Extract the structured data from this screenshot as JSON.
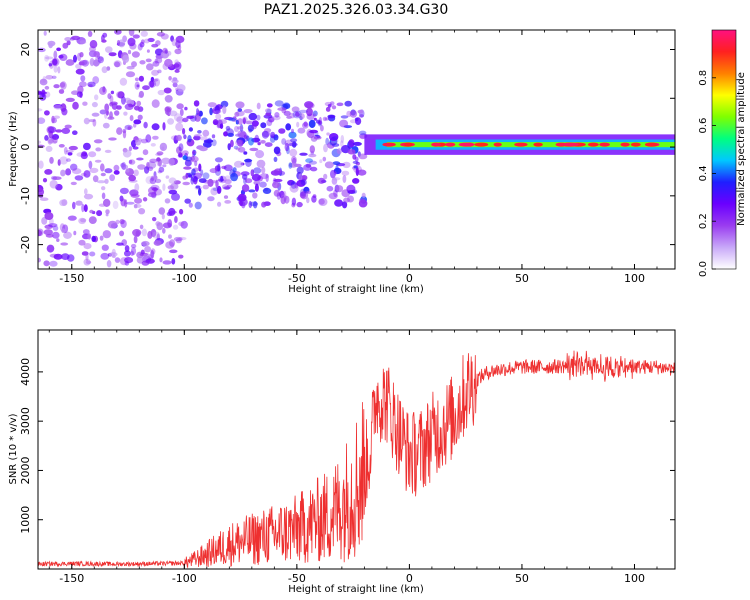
{
  "title": "PAZ1.2025.326.03.34.G30",
  "colorbar": {
    "label": "Normalized spectral amplitude",
    "ticks": [
      "0.0",
      "0.2",
      "0.4",
      "0.6",
      "0.8"
    ],
    "tick_values": [
      0.0,
      0.2,
      0.4,
      0.6,
      0.8
    ],
    "range": [
      0,
      1
    ],
    "colormap": [
      "#ffffff",
      "#c8a8f8",
      "#9a3cf0",
      "#6a00ff",
      "#1f1fff",
      "#00c8ff",
      "#00ff80",
      "#7fff00",
      "#ffff00",
      "#ff8000",
      "#ff2020",
      "#ff1080"
    ]
  },
  "chart_data": [
    {
      "type": "heatmap",
      "title": "PAZ1.2025.326.03.34.G30",
      "xlabel": "Height of straight line (km)",
      "ylabel": "Frequency (Hz)",
      "xlim": [
        -165,
        118
      ],
      "ylim": [
        -25,
        24
      ],
      "xticks": [
        -150,
        -100,
        -50,
        0,
        50,
        100
      ],
      "xtick_labels": [
        "-150",
        "-100",
        "-50",
        "0",
        "50",
        "100"
      ],
      "yticks": [
        -20,
        -10,
        0,
        10,
        20
      ],
      "ytick_labels": [
        "-20",
        "-10",
        "0",
        "10",
        "20"
      ],
      "regions": [
        {
          "name": "scattered noise",
          "x_range": [
            -165,
            -100
          ],
          "f_range": [
            -24,
            24
          ],
          "amplitude": 0.18
        },
        {
          "name": "broad band",
          "x_range": [
            -100,
            -20
          ],
          "f_range": [
            -12,
            9
          ],
          "amplitude": 0.25
        },
        {
          "name": "narrow line",
          "x_range": [
            -20,
            118
          ],
          "f_center": 0.5,
          "f_halfwidth": 1.5,
          "amplitude": 0.95
        }
      ]
    },
    {
      "type": "line",
      "xlabel": "Height of straight line (km)",
      "ylabel": "SNR (10 * v/v)",
      "xlim": [
        -165,
        118
      ],
      "ylim": [
        0,
        4850
      ],
      "xticks": [
        -150,
        -100,
        -50,
        0,
        50,
        100
      ],
      "xtick_labels": [
        "-150",
        "-100",
        "-50",
        "0",
        "50",
        "100"
      ],
      "yticks": [
        1000,
        2000,
        3000,
        4000
      ],
      "ytick_labels": [
        "1000",
        "2000",
        "3000",
        "4000"
      ],
      "color": "#ee3030",
      "series": [
        {
          "name": "SNR",
          "x": [
            -165,
            -150,
            -130,
            -110,
            -100,
            -95,
            -90,
            -85,
            -80,
            -75,
            -70,
            -65,
            -60,
            -55,
            -50,
            -45,
            -40,
            -35,
            -30,
            -25,
            -20,
            -17,
            -15,
            -10,
            -5,
            0,
            5,
            10,
            15,
            20,
            25,
            30,
            35,
            40,
            50,
            60,
            70,
            75,
            80,
            85,
            90,
            100,
            110,
            118
          ],
          "y": [
            100,
            110,
            100,
            110,
            120,
            200,
            300,
            400,
            500,
            550,
            600,
            650,
            700,
            750,
            800,
            900,
            1000,
            1100,
            1300,
            1600,
            2000,
            2500,
            3500,
            3400,
            2800,
            2300,
            2400,
            2700,
            2900,
            3100,
            3600,
            3850,
            4000,
            4050,
            4100,
            4100,
            4120,
            4150,
            4200,
            4100,
            4050,
            4100,
            4100,
            4050
          ]
        }
      ]
    }
  ]
}
